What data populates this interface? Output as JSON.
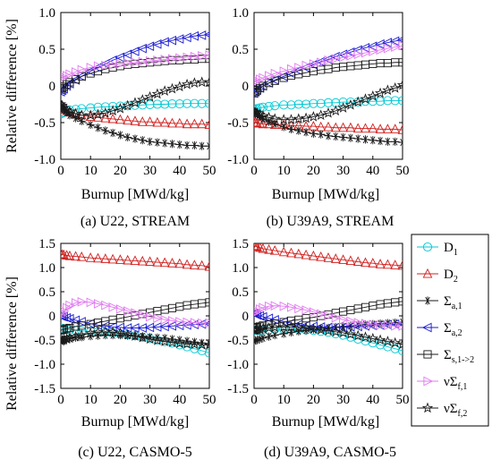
{
  "figure": {
    "ylabel_top": "Relative difference [%]",
    "ylabel_bottom": "Relative difference [%]",
    "xlabel_top_left": "Burnup [MWd/kg]",
    "xlabel_top_right": "Burnup [MWd/kg]",
    "xlabel_bottom_left": "Burnup [MWd/kg]",
    "xlabel_bottom_right": "Burnup [MWd/kg]"
  },
  "legend": {
    "placement": "right of panel (d)",
    "items": [
      {
        "key": "D1",
        "base": "D",
        "sub": "1",
        "color": "#00c8d2",
        "marker": "circle"
      },
      {
        "key": "D2",
        "base": "D",
        "sub": "2",
        "color": "#d0201e",
        "marker": "triangle-up"
      },
      {
        "key": "Sa1",
        "base": "Σ",
        "sub": "a,1",
        "color": "#1a1a1a",
        "marker": "asterisk"
      },
      {
        "key": "Sa2",
        "base": "Σ",
        "sub": "a,2",
        "color": "#1a1ad0",
        "marker": "triangle-left"
      },
      {
        "key": "Ss12",
        "base": "Σ",
        "sub": "s,1->2",
        "color": "#1a1a1a",
        "marker": "square"
      },
      {
        "key": "nSf1",
        "base": "νΣ",
        "sub": "f,1",
        "color": "#e07af0",
        "marker": "triangle-right"
      },
      {
        "key": "nSf2",
        "base": "νΣ",
        "sub": "f,2",
        "color": "#1a1a1a",
        "marker": "pentagram"
      }
    ]
  },
  "chart_data": [
    {
      "type": "line",
      "caption": "(a) U22, STREAM",
      "xlabel": "Burnup [MWd/kg]",
      "ylabel": "Relative difference [%]",
      "xlim": [
        0,
        50
      ],
      "ylim": [
        -1.0,
        1.0
      ],
      "xticks": [
        "0",
        "10",
        "20",
        "30",
        "40",
        "50"
      ],
      "yticks": [
        "1.0",
        "0.5",
        "0",
        "-0.5",
        "-1.0"
      ],
      "x": [
        0,
        0.5,
        1,
        2,
        3,
        5,
        7,
        10,
        12.5,
        15,
        17.5,
        20,
        22.5,
        25,
        27.5,
        30,
        32.5,
        35,
        37.5,
        40,
        42.5,
        45,
        47.5,
        50
      ],
      "series": [
        {
          "name": "D1",
          "values": [
            -0.38,
            -0.37,
            -0.36,
            -0.34,
            -0.33,
            -0.32,
            -0.31,
            -0.3,
            -0.29,
            -0.285,
            -0.28,
            -0.275,
            -0.27,
            -0.265,
            -0.26,
            -0.255,
            -0.25,
            -0.25,
            -0.245,
            -0.245,
            -0.24,
            -0.24,
            -0.24,
            -0.24
          ]
        },
        {
          "name": "D2",
          "values": [
            -0.3,
            -0.31,
            -0.32,
            -0.34,
            -0.36,
            -0.38,
            -0.4,
            -0.42,
            -0.43,
            -0.44,
            -0.45,
            -0.46,
            -0.47,
            -0.48,
            -0.49,
            -0.49,
            -0.5,
            -0.5,
            -0.51,
            -0.51,
            -0.52,
            -0.52,
            -0.52,
            -0.53
          ]
        },
        {
          "name": "Sa1",
          "values": [
            -0.28,
            -0.3,
            -0.32,
            -0.36,
            -0.4,
            -0.44,
            -0.48,
            -0.53,
            -0.57,
            -0.61,
            -0.64,
            -0.67,
            -0.7,
            -0.72,
            -0.74,
            -0.76,
            -0.77,
            -0.78,
            -0.79,
            -0.8,
            -0.81,
            -0.81,
            -0.82,
            -0.82
          ]
        },
        {
          "name": "Sa2",
          "values": [
            -0.08,
            -0.06,
            -0.04,
            0.0,
            0.03,
            0.08,
            0.13,
            0.2,
            0.25,
            0.3,
            0.35,
            0.39,
            0.43,
            0.47,
            0.51,
            0.54,
            0.57,
            0.6,
            0.62,
            0.64,
            0.66,
            0.68,
            0.69,
            0.7
          ]
        },
        {
          "name": "Ss12",
          "values": [
            -0.05,
            -0.03,
            -0.01,
            0.02,
            0.05,
            0.09,
            0.13,
            0.17,
            0.2,
            0.23,
            0.25,
            0.27,
            0.29,
            0.3,
            0.31,
            0.32,
            0.33,
            0.34,
            0.35,
            0.35,
            0.36,
            0.36,
            0.37,
            0.37
          ]
        },
        {
          "name": "nSf1",
          "values": [
            0.1,
            0.11,
            0.12,
            0.14,
            0.16,
            0.19,
            0.22,
            0.25,
            0.27,
            0.28,
            0.29,
            0.3,
            0.31,
            0.32,
            0.33,
            0.34,
            0.35,
            0.36,
            0.37,
            0.38,
            0.39,
            0.4,
            0.41,
            0.42
          ]
        },
        {
          "name": "nSf2",
          "values": [
            -0.25,
            -0.27,
            -0.3,
            -0.33,
            -0.35,
            -0.38,
            -0.4,
            -0.4,
            -0.39,
            -0.37,
            -0.34,
            -0.31,
            -0.27,
            -0.23,
            -0.19,
            -0.15,
            -0.11,
            -0.07,
            -0.04,
            -0.01,
            0.02,
            0.04,
            0.05,
            0.05
          ]
        }
      ]
    },
    {
      "type": "line",
      "caption": "(b) U39A9, STREAM",
      "xlabel": "Burnup [MWd/kg]",
      "ylabel": "",
      "xlim": [
        0,
        50
      ],
      "ylim": [
        -1.0,
        1.0
      ],
      "xticks": [
        "0",
        "10",
        "20",
        "30",
        "40",
        "50"
      ],
      "yticks": [
        "1.0",
        "0.5",
        "0",
        "-0.5",
        "-1.0"
      ],
      "x": [
        0,
        0.5,
        1,
        2,
        3,
        5,
        7,
        10,
        12.5,
        15,
        17.5,
        20,
        22.5,
        25,
        27.5,
        30,
        32.5,
        35,
        37.5,
        40,
        42.5,
        45,
        47.5,
        50
      ],
      "series": [
        {
          "name": "D1",
          "values": [
            -0.33,
            -0.32,
            -0.31,
            -0.3,
            -0.29,
            -0.28,
            -0.27,
            -0.26,
            -0.26,
            -0.25,
            -0.25,
            -0.24,
            -0.24,
            -0.23,
            -0.23,
            -0.22,
            -0.22,
            -0.22,
            -0.21,
            -0.21,
            -0.21,
            -0.2,
            -0.2,
            -0.2
          ]
        },
        {
          "name": "D2",
          "values": [
            -0.5,
            -0.5,
            -0.51,
            -0.51,
            -0.52,
            -0.52,
            -0.53,
            -0.53,
            -0.54,
            -0.54,
            -0.55,
            -0.55,
            -0.56,
            -0.56,
            -0.57,
            -0.57,
            -0.57,
            -0.58,
            -0.58,
            -0.58,
            -0.59,
            -0.59,
            -0.59,
            -0.6
          ]
        },
        {
          "name": "Sa1",
          "values": [
            -0.35,
            -0.37,
            -0.39,
            -0.42,
            -0.45,
            -0.49,
            -0.52,
            -0.56,
            -0.59,
            -0.61,
            -0.63,
            -0.65,
            -0.66,
            -0.68,
            -0.69,
            -0.7,
            -0.71,
            -0.72,
            -0.73,
            -0.74,
            -0.75,
            -0.76,
            -0.76,
            -0.77
          ]
        },
        {
          "name": "Sa2",
          "values": [
            -0.1,
            -0.08,
            -0.06,
            -0.03,
            0.0,
            0.04,
            0.08,
            0.13,
            0.17,
            0.21,
            0.25,
            0.29,
            0.33,
            0.36,
            0.4,
            0.43,
            0.46,
            0.49,
            0.52,
            0.54,
            0.57,
            0.59,
            0.61,
            0.63
          ]
        },
        {
          "name": "Ss12",
          "values": [
            -0.1,
            -0.08,
            -0.06,
            -0.03,
            0.0,
            0.04,
            0.07,
            0.11,
            0.14,
            0.16,
            0.18,
            0.2,
            0.22,
            0.23,
            0.25,
            0.26,
            0.27,
            0.28,
            0.29,
            0.3,
            0.31,
            0.31,
            0.32,
            0.32
          ]
        },
        {
          "name": "nSf1",
          "values": [
            0.05,
            0.06,
            0.07,
            0.09,
            0.11,
            0.14,
            0.17,
            0.2,
            0.23,
            0.25,
            0.28,
            0.3,
            0.32,
            0.35,
            0.37,
            0.39,
            0.41,
            0.43,
            0.45,
            0.47,
            0.49,
            0.51,
            0.53,
            0.55
          ]
        },
        {
          "name": "nSf2",
          "values": [
            -0.35,
            -0.36,
            -0.37,
            -0.39,
            -0.41,
            -0.43,
            -0.45,
            -0.46,
            -0.46,
            -0.45,
            -0.44,
            -0.42,
            -0.4,
            -0.37,
            -0.34,
            -0.3,
            -0.26,
            -0.22,
            -0.18,
            -0.14,
            -0.1,
            -0.06,
            -0.03,
            0.01
          ]
        }
      ]
    },
    {
      "type": "line",
      "caption": "(c) U22, CASMO-5",
      "xlabel": "Burnup [MWd/kg]",
      "ylabel": "Relative difference [%]",
      "xlim": [
        0,
        50
      ],
      "ylim": [
        -1.5,
        1.5
      ],
      "xticks": [
        "0",
        "10",
        "20",
        "30",
        "40",
        "50"
      ],
      "yticks": [
        "1.5",
        "1.0",
        "0.5",
        "0",
        "-0.5",
        "-1.0",
        "-1.5"
      ],
      "x": [
        0,
        0.5,
        1,
        2,
        3,
        5,
        7,
        10,
        12.5,
        15,
        17.5,
        20,
        22.5,
        25,
        27.5,
        30,
        32.5,
        35,
        37.5,
        40,
        42.5,
        45,
        47.5,
        50
      ],
      "series": [
        {
          "name": "D1",
          "values": [
            -0.25,
            -0.26,
            -0.27,
            -0.28,
            -0.29,
            -0.3,
            -0.31,
            -0.32,
            -0.33,
            -0.34,
            -0.35,
            -0.37,
            -0.39,
            -0.41,
            -0.44,
            -0.47,
            -0.5,
            -0.53,
            -0.56,
            -0.6,
            -0.64,
            -0.68,
            -0.72,
            -0.77
          ]
        },
        {
          "name": "D2",
          "values": [
            1.28,
            1.27,
            1.26,
            1.25,
            1.24,
            1.23,
            1.22,
            1.2,
            1.19,
            1.18,
            1.17,
            1.16,
            1.15,
            1.14,
            1.13,
            1.12,
            1.11,
            1.1,
            1.09,
            1.08,
            1.06,
            1.05,
            1.04,
            1.02
          ]
        },
        {
          "name": "Sa1",
          "values": [
            -0.5,
            -0.5,
            -0.49,
            -0.48,
            -0.47,
            -0.45,
            -0.44,
            -0.42,
            -0.41,
            -0.4,
            -0.4,
            -0.4,
            -0.41,
            -0.42,
            -0.43,
            -0.44,
            -0.45,
            -0.46,
            -0.48,
            -0.5,
            -0.52,
            -0.54,
            -0.56,
            -0.58
          ]
        },
        {
          "name": "Sa2",
          "values": [
            0.0,
            -0.01,
            -0.02,
            -0.04,
            -0.06,
            -0.09,
            -0.12,
            -0.16,
            -0.19,
            -0.21,
            -0.23,
            -0.24,
            -0.25,
            -0.25,
            -0.25,
            -0.24,
            -0.23,
            -0.22,
            -0.21,
            -0.2,
            -0.19,
            -0.18,
            -0.17,
            -0.16
          ]
        },
        {
          "name": "Ss12",
          "values": [
            -0.3,
            -0.29,
            -0.28,
            -0.26,
            -0.25,
            -0.22,
            -0.2,
            -0.17,
            -0.14,
            -0.11,
            -0.08,
            -0.05,
            -0.02,
            0.01,
            0.04,
            0.07,
            0.1,
            0.13,
            0.16,
            0.19,
            0.22,
            0.24,
            0.26,
            0.28
          ]
        },
        {
          "name": "nSf1",
          "values": [
            0.0,
            0.05,
            0.1,
            0.17,
            0.22,
            0.27,
            0.29,
            0.28,
            0.25,
            0.22,
            0.18,
            0.14,
            0.1,
            0.06,
            0.02,
            -0.02,
            -0.05,
            -0.08,
            -0.1,
            -0.12,
            -0.13,
            -0.14,
            -0.15,
            -0.15
          ]
        },
        {
          "name": "nSf2",
          "values": [
            -0.52,
            -0.51,
            -0.5,
            -0.48,
            -0.46,
            -0.43,
            -0.4,
            -0.36,
            -0.34,
            -0.33,
            -0.34,
            -0.36,
            -0.39,
            -0.42,
            -0.45,
            -0.48,
            -0.51,
            -0.53,
            -0.55,
            -0.57,
            -0.58,
            -0.59,
            -0.6,
            -0.6
          ]
        }
      ]
    },
    {
      "type": "line",
      "caption": "(d) U39A9, CASMO-5",
      "xlabel": "Burnup [MWd/kg]",
      "ylabel": "",
      "xlim": [
        0,
        50
      ],
      "ylim": [
        -1.5,
        1.5
      ],
      "xticks": [
        "0",
        "10",
        "20",
        "30",
        "40",
        "50"
      ],
      "yticks": [
        "1.5",
        "1.0",
        "0.5",
        "0",
        "-0.5",
        "-1.0",
        "-1.5"
      ],
      "x": [
        0,
        0.5,
        1,
        2,
        3,
        5,
        7,
        10,
        12.5,
        15,
        17.5,
        20,
        22.5,
        25,
        27.5,
        30,
        32.5,
        35,
        37.5,
        40,
        42.5,
        45,
        47.5,
        50
      ],
      "series": [
        {
          "name": "D1",
          "values": [
            -0.3,
            -0.3,
            -0.3,
            -0.3,
            -0.29,
            -0.29,
            -0.28,
            -0.28,
            -0.28,
            -0.28,
            -0.29,
            -0.3,
            -0.32,
            -0.34,
            -0.37,
            -0.4,
            -0.44,
            -0.48,
            -0.52,
            -0.56,
            -0.6,
            -0.64,
            -0.68,
            -0.72
          ]
        },
        {
          "name": "D2",
          "values": [
            1.45,
            1.44,
            1.43,
            1.41,
            1.39,
            1.37,
            1.35,
            1.32,
            1.3,
            1.28,
            1.26,
            1.24,
            1.22,
            1.2,
            1.18,
            1.16,
            1.14,
            1.12,
            1.1,
            1.09,
            1.07,
            1.06,
            1.05,
            1.04
          ]
        },
        {
          "name": "Sa1",
          "values": [
            -0.52,
            -0.51,
            -0.5,
            -0.48,
            -0.46,
            -0.43,
            -0.4,
            -0.37,
            -0.34,
            -0.32,
            -0.3,
            -0.28,
            -0.26,
            -0.25,
            -0.23,
            -0.22,
            -0.21,
            -0.19,
            -0.18,
            -0.17,
            -0.16,
            -0.15,
            -0.14,
            -0.13
          ]
        },
        {
          "name": "Sa2",
          "values": [
            0.05,
            0.04,
            0.02,
            0.0,
            -0.02,
            -0.05,
            -0.08,
            -0.12,
            -0.15,
            -0.18,
            -0.2,
            -0.22,
            -0.23,
            -0.24,
            -0.24,
            -0.24,
            -0.23,
            -0.22,
            -0.21,
            -0.2,
            -0.19,
            -0.18,
            -0.17,
            -0.16
          ]
        },
        {
          "name": "Ss12",
          "values": [
            -0.25,
            -0.24,
            -0.23,
            -0.22,
            -0.2,
            -0.18,
            -0.16,
            -0.13,
            -0.1,
            -0.08,
            -0.05,
            -0.03,
            0.0,
            0.03,
            0.06,
            0.09,
            0.12,
            0.15,
            0.18,
            0.21,
            0.24,
            0.26,
            0.28,
            0.3
          ]
        },
        {
          "name": "nSf1",
          "values": [
            0.05,
            0.08,
            0.1,
            0.14,
            0.17,
            0.2,
            0.21,
            0.2,
            0.18,
            0.15,
            0.12,
            0.08,
            0.04,
            0.0,
            -0.04,
            -0.08,
            -0.11,
            -0.14,
            -0.16,
            -0.18,
            -0.19,
            -0.2,
            -0.21,
            -0.21
          ]
        },
        {
          "name": "nSf2",
          "values": [
            -0.3,
            -0.3,
            -0.29,
            -0.28,
            -0.27,
            -0.25,
            -0.24,
            -0.23,
            -0.23,
            -0.24,
            -0.25,
            -0.27,
            -0.29,
            -0.31,
            -0.33,
            -0.35,
            -0.38,
            -0.41,
            -0.44,
            -0.47,
            -0.5,
            -0.53,
            -0.56,
            -0.59
          ]
        }
      ]
    }
  ]
}
